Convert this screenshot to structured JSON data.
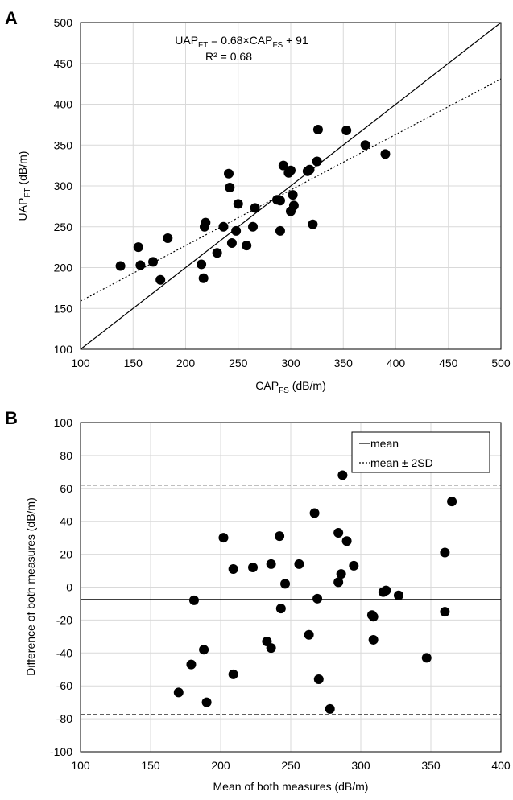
{
  "panels": {
    "A": {
      "letter": "A"
    },
    "B": {
      "letter": "B"
    }
  },
  "chart_data": [
    {
      "type": "scatter",
      "panel": "A",
      "xlabel_main": "CAP",
      "xlabel_sub": "FS",
      "xlabel_unit": " (dB/m)",
      "ylabel_main": "UAP",
      "ylabel_sub": "FT",
      "ylabel_unit": " (dB/m)",
      "xlim": [
        100,
        500
      ],
      "ylim": [
        100,
        500
      ],
      "xticks": [
        100,
        150,
        200,
        250,
        300,
        350,
        400,
        450,
        500
      ],
      "yticks": [
        100,
        150,
        200,
        250,
        300,
        350,
        400,
        450,
        500
      ],
      "grid": true,
      "equation": {
        "lhs": "UAP",
        "lhs_sub": "FT",
        "mid": " = 0.68×CAP",
        "mid_sub": "FS",
        "rhs": " + 91",
        "r2": "R² = 0.68"
      },
      "lines": [
        {
          "kind": "identity",
          "style": "solid",
          "points": [
            [
              100,
              100
            ],
            [
              500,
              500
            ]
          ]
        },
        {
          "kind": "regression",
          "style": "dotted",
          "slope": 0.68,
          "intercept": 91
        }
      ],
      "color": "#000000",
      "points": [
        [
          138,
          202
        ],
        [
          155,
          225
        ],
        [
          157,
          203
        ],
        [
          169,
          207
        ],
        [
          176,
          185
        ],
        [
          183,
          236
        ],
        [
          215,
          204
        ],
        [
          217,
          187
        ],
        [
          218,
          250
        ],
        [
          219,
          255
        ],
        [
          230,
          218
        ],
        [
          236,
          250
        ],
        [
          241,
          315
        ],
        [
          242,
          298
        ],
        [
          244,
          230
        ],
        [
          248,
          245
        ],
        [
          250,
          278
        ],
        [
          258,
          227
        ],
        [
          264,
          250
        ],
        [
          266,
          273
        ],
        [
          287,
          283
        ],
        [
          290,
          245
        ],
        [
          290,
          282
        ],
        [
          293,
          325
        ],
        [
          298,
          316
        ],
        [
          300,
          319
        ],
        [
          300,
          269
        ],
        [
          302,
          289
        ],
        [
          303,
          276
        ],
        [
          316,
          318
        ],
        [
          318,
          320
        ],
        [
          321,
          253
        ],
        [
          325,
          330
        ],
        [
          326,
          369
        ],
        [
          353,
          368
        ],
        [
          371,
          350
        ],
        [
          390,
          339
        ]
      ]
    },
    {
      "type": "scatter",
      "panel": "B",
      "xlabel": "Mean of both measures (dB/m)",
      "ylabel": "Difference of both measures (dB/m)",
      "xlim": [
        100,
        400
      ],
      "ylim": [
        -100,
        100
      ],
      "xticks": [
        100,
        150,
        200,
        250,
        300,
        350,
        400
      ],
      "yticks": [
        -100,
        -80,
        -60,
        -40,
        -20,
        0,
        20,
        40,
        60,
        80,
        100
      ],
      "grid": true,
      "reference_lines": {
        "mean": -7.5,
        "upper": 62,
        "lower": -77.5
      },
      "legend": {
        "position": "top-right",
        "mean": "mean",
        "limits": "mean ± 2SD"
      },
      "color": "#000000",
      "points": [
        [
          170,
          -64
        ],
        [
          179,
          -47
        ],
        [
          181,
          -8
        ],
        [
          188,
          -38
        ],
        [
          190,
          -70
        ],
        [
          202,
          30
        ],
        [
          209,
          11
        ],
        [
          209,
          -53
        ],
        [
          223,
          12
        ],
        [
          233,
          -33
        ],
        [
          236,
          14
        ],
        [
          236,
          -37
        ],
        [
          242,
          31
        ],
        [
          243,
          -13
        ],
        [
          246,
          2
        ],
        [
          256,
          14
        ],
        [
          263,
          -29
        ],
        [
          267,
          45
        ],
        [
          269,
          -7
        ],
        [
          270,
          -56
        ],
        [
          278,
          -74
        ],
        [
          284,
          33
        ],
        [
          284,
          3
        ],
        [
          286,
          8
        ],
        [
          287,
          68
        ],
        [
          290,
          28
        ],
        [
          295,
          13
        ],
        [
          308,
          -17
        ],
        [
          309,
          -18
        ],
        [
          309,
          -32
        ],
        [
          316,
          -3
        ],
        [
          318,
          -2
        ],
        [
          327,
          -5
        ],
        [
          347,
          -43
        ],
        [
          360,
          21
        ],
        [
          360,
          -15
        ],
        [
          365,
          52
        ]
      ]
    }
  ]
}
